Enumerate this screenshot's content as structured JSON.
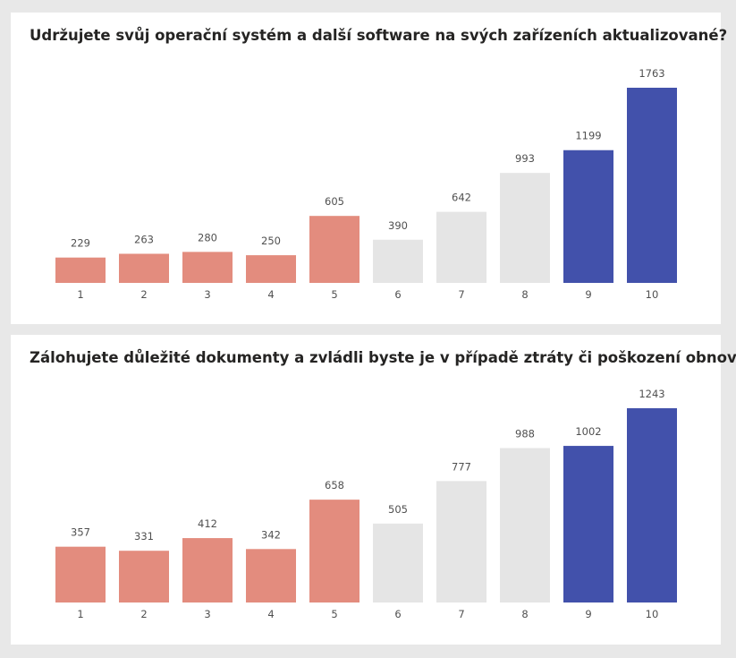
{
  "colors": {
    "low": "#e38c7e",
    "mid": "#e5e5e5",
    "high": "#4251ab"
  },
  "chart_data": [
    {
      "type": "bar",
      "title": "Udržujete svůj operační systém a další software na svých zařízeních aktualizované?",
      "categories": [
        "1",
        "2",
        "3",
        "4",
        "5",
        "6",
        "7",
        "8",
        "9",
        "10"
      ],
      "values": [
        229,
        263,
        280,
        250,
        605,
        390,
        642,
        993,
        1199,
        1763
      ],
      "color_groups": [
        "low",
        "low",
        "low",
        "low",
        "low",
        "mid",
        "mid",
        "mid",
        "high",
        "high"
      ],
      "ylim": [
        0,
        1763
      ],
      "grid": false
    },
    {
      "type": "bar",
      "title": "Zálohujete důležité dokumenty a zvládli byste je v případě ztráty či poškození obnovit?",
      "categories": [
        "1",
        "2",
        "3",
        "4",
        "5",
        "6",
        "7",
        "8",
        "9",
        "10"
      ],
      "values": [
        357,
        331,
        412,
        342,
        658,
        505,
        777,
        988,
        1002,
        1243
      ],
      "color_groups": [
        "low",
        "low",
        "low",
        "low",
        "low",
        "mid",
        "mid",
        "mid",
        "high",
        "high"
      ],
      "ylim": [
        0,
        1243
      ],
      "grid": false
    }
  ]
}
